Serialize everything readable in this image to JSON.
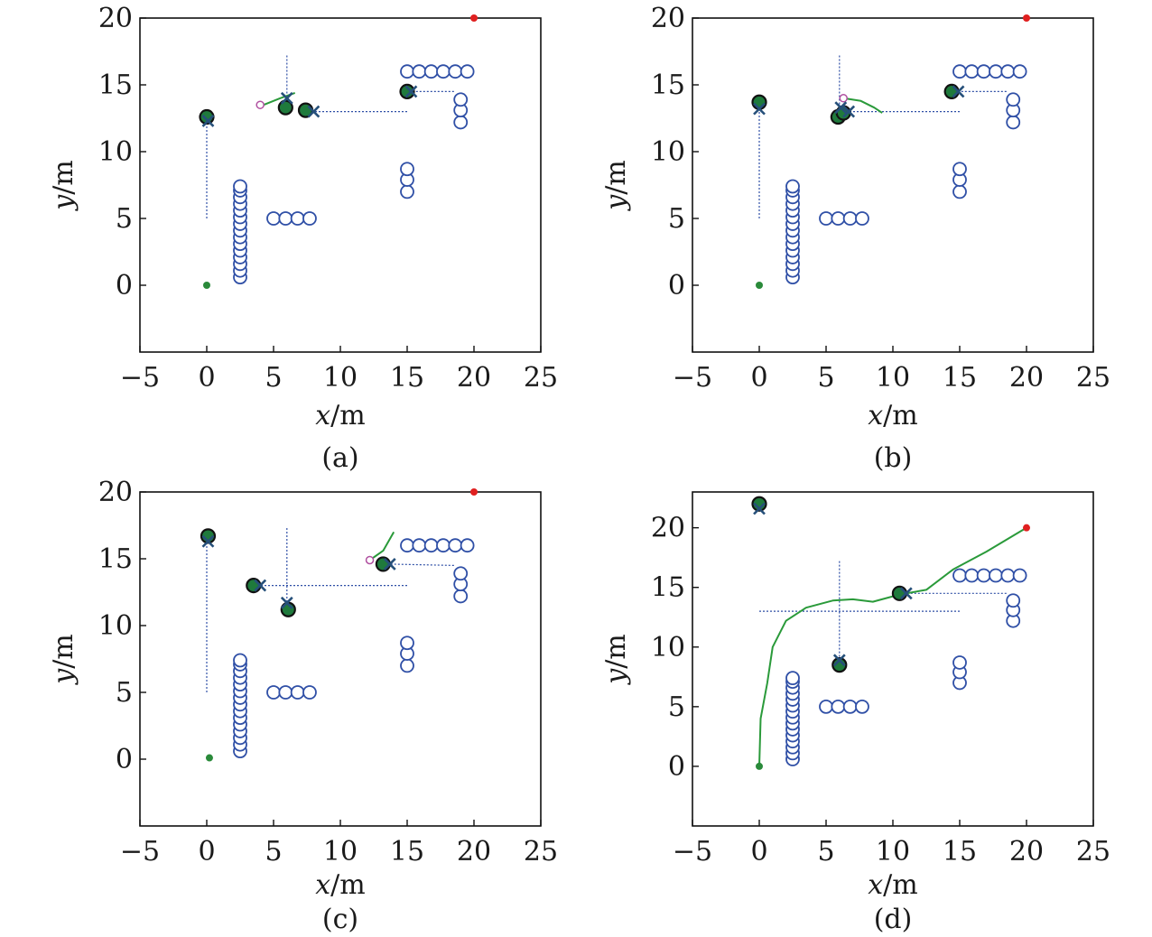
{
  "colors": {
    "obstacle": "#2f4fa6",
    "dynamic_fill": "#1f7a3c",
    "guide_line": "#2f4fa6",
    "trajectory": "#2a9a3a",
    "start": "#2a8a3a",
    "goal": "#e02020",
    "marker": "#26507a",
    "predicted": "#b050a0"
  },
  "chart_data": [
    {
      "type": "scatter",
      "caption": "(a)",
      "xlabel_var": "x",
      "xlabel_unit": "/m",
      "ylabel_var": "y",
      "ylabel_unit": "/m",
      "xlim": [
        -5,
        25
      ],
      "ylim": [
        -5,
        20
      ],
      "xticks": [
        -5,
        0,
        5,
        10,
        15,
        20,
        25
      ],
      "xtick_labels": [
        "−5",
        "0",
        "5",
        "10",
        "15",
        "20",
        "25"
      ],
      "yticks": [
        0,
        5,
        10,
        15,
        20
      ],
      "ytick_labels": [
        "0",
        "5",
        "10",
        "15",
        "20"
      ],
      "start": [
        0,
        0
      ],
      "goal": [
        20,
        20
      ],
      "trajectory": [
        [
          4.0,
          13.4
        ],
        [
          5.5,
          14.0
        ],
        [
          6.6,
          14.4
        ]
      ],
      "predicted": [
        [
          4.0,
          13.5
        ]
      ],
      "agents": [
        [
          0.0,
          12.6
        ],
        [
          5.9,
          13.3
        ],
        [
          7.4,
          13.1
        ],
        [
          15.0,
          14.5
        ]
      ],
      "markers": [
        [
          0.1,
          12.3
        ],
        [
          6.0,
          14.0
        ],
        [
          8.0,
          13.0
        ],
        [
          15.3,
          14.5
        ]
      ],
      "guides": [
        [
          [
            0,
            5
          ],
          [
            0,
            12.3
          ]
        ],
        [
          [
            6,
            17.2
          ],
          [
            6,
            14.0
          ]
        ],
        [
          [
            15,
            13.0
          ],
          [
            8.0,
            13.0
          ]
        ],
        [
          [
            18.5,
            14.5
          ],
          [
            15.3,
            14.5
          ]
        ]
      ]
    },
    {
      "type": "scatter",
      "caption": "(b)",
      "xlabel_var": "x",
      "xlabel_unit": "/m",
      "ylabel_var": "y",
      "ylabel_unit": "/m",
      "xlim": [
        -5,
        25
      ],
      "ylim": [
        -5,
        20
      ],
      "xticks": [
        -5,
        0,
        5,
        10,
        15,
        20,
        25
      ],
      "xtick_labels": [
        "−5",
        "0",
        "5",
        "10",
        "15",
        "20",
        "25"
      ],
      "yticks": [
        0,
        5,
        10,
        15,
        20
      ],
      "ytick_labels": [
        "0",
        "5",
        "10",
        "15",
        "20"
      ],
      "start": [
        0,
        0
      ],
      "goal": [
        20,
        20
      ],
      "trajectory": [
        [
          6.3,
          14.0
        ],
        [
          7.6,
          13.8
        ],
        [
          8.6,
          13.3
        ],
        [
          9.2,
          12.9
        ]
      ],
      "predicted": [
        [
          6.3,
          14.0
        ]
      ],
      "agents": [
        [
          0.0,
          13.7
        ],
        [
          5.9,
          12.6
        ],
        [
          6.3,
          12.9
        ],
        [
          14.4,
          14.5
        ]
      ],
      "markers": [
        [
          0.0,
          13.2
        ],
        [
          6.1,
          13.3
        ],
        [
          6.7,
          13.0
        ],
        [
          14.9,
          14.5
        ]
      ],
      "guides": [
        [
          [
            0,
            5
          ],
          [
            0,
            13.2
          ]
        ],
        [
          [
            6,
            17.2
          ],
          [
            6,
            13.3
          ]
        ],
        [
          [
            15,
            13.0
          ],
          [
            6.7,
            13.0
          ]
        ],
        [
          [
            18.5,
            14.5
          ],
          [
            14.9,
            14.5
          ]
        ]
      ]
    },
    {
      "type": "scatter",
      "caption": "(c)",
      "xlabel_var": "x",
      "xlabel_unit": "/m",
      "ylabel_var": "y",
      "ylabel_unit": "/m",
      "xlim": [
        -5,
        25
      ],
      "ylim": [
        -5,
        20
      ],
      "xticks": [
        -5,
        0,
        5,
        10,
        15,
        20,
        25
      ],
      "xtick_labels": [
        "−5",
        "0",
        "5",
        "10",
        "15",
        "20",
        "25"
      ],
      "yticks": [
        0,
        5,
        10,
        15,
        20
      ],
      "ytick_labels": [
        "0",
        "5",
        "10",
        "15",
        "20"
      ],
      "start": [
        0.2,
        0.1
      ],
      "goal": [
        20,
        20
      ],
      "trajectory": [
        [
          12.2,
          14.9
        ],
        [
          13.2,
          15.6
        ],
        [
          14.0,
          17.0
        ]
      ],
      "predicted": [
        [
          12.2,
          14.9
        ]
      ],
      "agents": [
        [
          0.1,
          16.7
        ],
        [
          3.5,
          13.0
        ],
        [
          6.1,
          11.2
        ],
        [
          13.2,
          14.6
        ]
      ],
      "markers": [
        [
          0.1,
          16.3
        ],
        [
          4.0,
          13.0
        ],
        [
          6.0,
          11.7
        ],
        [
          13.7,
          14.6
        ]
      ],
      "guides": [
        [
          [
            0,
            5
          ],
          [
            0,
            16.3
          ]
        ],
        [
          [
            6,
            17.3
          ],
          [
            6,
            11.7
          ]
        ],
        [
          [
            15,
            13.0
          ],
          [
            4.0,
            13.0
          ]
        ],
        [
          [
            18.5,
            14.5
          ],
          [
            13.7,
            14.6
          ]
        ]
      ]
    },
    {
      "type": "scatter",
      "caption": "(d)",
      "xlabel_var": "x",
      "xlabel_unit": "/m",
      "ylabel_var": "y",
      "ylabel_unit": "/m",
      "xlim": [
        -5,
        25
      ],
      "ylim": [
        -5,
        23
      ],
      "xticks": [
        -5,
        0,
        5,
        10,
        15,
        20,
        25
      ],
      "xtick_labels": [
        "−5",
        "0",
        "5",
        "10",
        "15",
        "20",
        "25"
      ],
      "yticks": [
        0,
        5,
        10,
        15,
        20
      ],
      "ytick_labels": [
        "0",
        "5",
        "10",
        "15",
        "20"
      ],
      "start": [
        0,
        0
      ],
      "goal": [
        20,
        20
      ],
      "trajectory": [
        [
          0,
          0
        ],
        [
          0.1,
          4
        ],
        [
          0.6,
          7
        ],
        [
          1,
          10
        ],
        [
          2,
          12.2
        ],
        [
          3.5,
          13.3
        ],
        [
          5.5,
          13.9
        ],
        [
          7,
          14.0
        ],
        [
          8.5,
          13.8
        ],
        [
          10.5,
          14.4
        ],
        [
          12.5,
          14.8
        ],
        [
          14.5,
          16.5
        ],
        [
          17,
          18
        ],
        [
          20,
          20
        ]
      ],
      "predicted": [],
      "agents": [
        [
          0.0,
          22.0
        ],
        [
          6.0,
          8.5
        ],
        [
          10.5,
          14.5
        ]
      ],
      "markers": [
        [
          0.0,
          21.6
        ],
        [
          6.0,
          8.9
        ],
        [
          11.0,
          14.5
        ]
      ],
      "guides": [
        [
          [
            0,
            21.6
          ],
          [
            0,
            21.6
          ]
        ],
        [
          [
            6,
            17.2
          ],
          [
            6,
            8.9
          ]
        ],
        [
          [
            15,
            13.0
          ],
          [
            0.0,
            13.0
          ]
        ],
        [
          [
            18.5,
            14.5
          ],
          [
            11.0,
            14.5
          ]
        ]
      ]
    }
  ],
  "obstacles": [
    [
      2.5,
      0.6
    ],
    [
      2.5,
      1.1
    ],
    [
      2.5,
      1.6
    ],
    [
      2.5,
      2.1
    ],
    [
      2.5,
      2.6
    ],
    [
      2.5,
      3.1
    ],
    [
      2.5,
      3.6
    ],
    [
      2.5,
      4.1
    ],
    [
      2.5,
      4.6
    ],
    [
      2.5,
      5.1
    ],
    [
      2.5,
      5.6
    ],
    [
      2.5,
      6.1
    ],
    [
      2.5,
      6.6
    ],
    [
      2.5,
      7.1
    ],
    [
      2.5,
      7.4
    ],
    [
      5.0,
      5.0
    ],
    [
      5.9,
      5.0
    ],
    [
      6.8,
      5.0
    ],
    [
      7.7,
      5.0
    ],
    [
      15.0,
      7.0
    ],
    [
      15.0,
      7.9
    ],
    [
      15.0,
      8.7
    ],
    [
      15.0,
      16.0
    ],
    [
      15.9,
      16.0
    ],
    [
      16.8,
      16.0
    ],
    [
      17.7,
      16.0
    ],
    [
      18.6,
      16.0
    ],
    [
      19.5,
      16.0
    ],
    [
      19.0,
      12.2
    ],
    [
      19.0,
      13.1
    ],
    [
      19.0,
      13.9
    ]
  ]
}
